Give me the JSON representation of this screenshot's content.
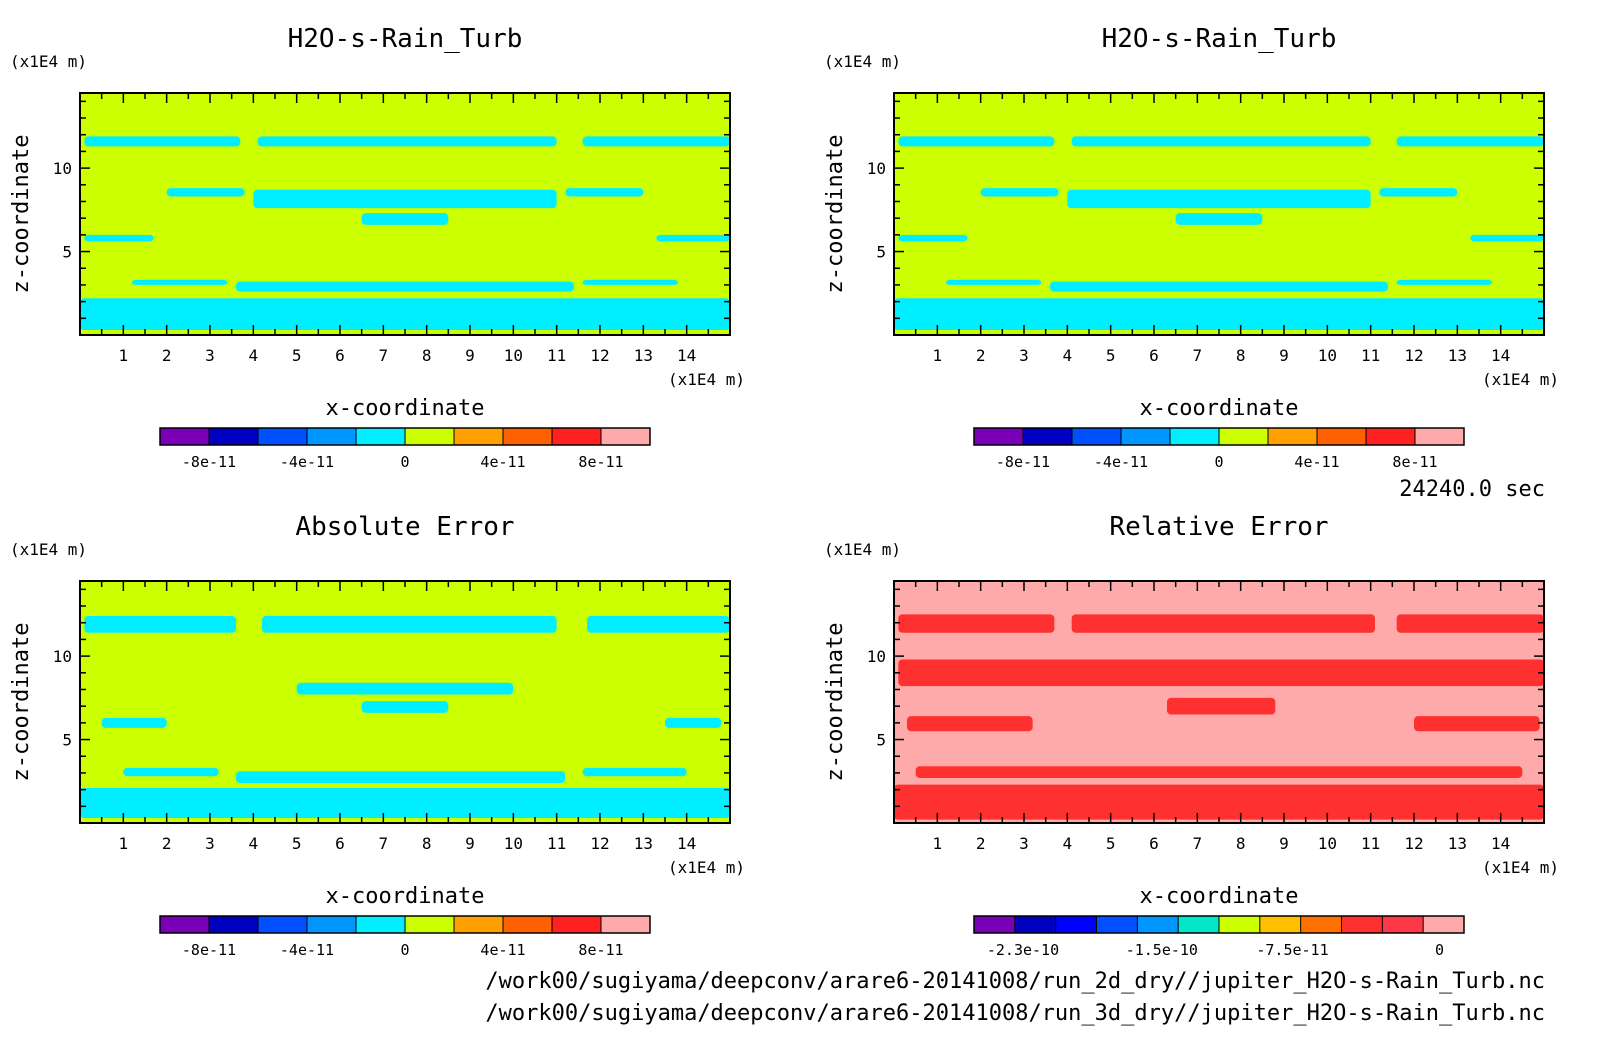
{
  "figure": {
    "time_label": "24240.0 sec",
    "file_paths": [
      "/work00/sugiyama/deepconv/arare6-20141008/run_2d_dry//jupiter_H2O-s-Rain_Turb.nc",
      "/work00/sugiyama/deepconv/arare6-20141008/run_3d_dry//jupiter_H2O-s-Rain_Turb.nc"
    ]
  },
  "chart_data": [
    {
      "type": "heatmap",
      "title": "H2O-s-Rain_Turb",
      "xlabel": "x-coordinate",
      "ylabel": "z-coordinate",
      "x_unit": "(x1E4 m)",
      "y_unit": "(x1E4 m)",
      "xlim": [
        0,
        15
      ],
      "ylim": [
        0,
        14.5
      ],
      "x_ticks": [
        "1",
        "2",
        "3",
        "4",
        "5",
        "6",
        "7",
        "8",
        "9",
        "10",
        "11",
        "12",
        "13",
        "14"
      ],
      "y_ticks": [
        "5",
        "10"
      ],
      "background_level": "0 to 2e-11",
      "background_color": "#ccff00",
      "feature_color": "#00eeff",
      "features": [
        {
          "x": [
            0.1,
            3.7
          ],
          "z": [
            11.3,
            11.9
          ]
        },
        {
          "x": [
            4.1,
            11.0
          ],
          "z": [
            11.3,
            11.9
          ]
        },
        {
          "x": [
            11.6,
            15.0
          ],
          "z": [
            11.3,
            11.9
          ]
        },
        {
          "x": [
            2.0,
            3.8
          ],
          "z": [
            8.3,
            8.8
          ]
        },
        {
          "x": [
            4.0,
            11.0
          ],
          "z": [
            7.6,
            8.7
          ]
        },
        {
          "x": [
            6.5,
            8.5
          ],
          "z": [
            6.6,
            7.3
          ]
        },
        {
          "x": [
            11.2,
            13.0
          ],
          "z": [
            8.3,
            8.8
          ]
        },
        {
          "x": [
            0.1,
            1.7
          ],
          "z": [
            5.6,
            6.0
          ]
        },
        {
          "x": [
            13.3,
            15.0
          ],
          "z": [
            5.6,
            6.0
          ]
        },
        {
          "x": [
            1.2,
            3.4
          ],
          "z": [
            3.0,
            3.3
          ]
        },
        {
          "x": [
            3.6,
            11.4
          ],
          "z": [
            2.6,
            3.2
          ]
        },
        {
          "x": [
            11.6,
            13.8
          ],
          "z": [
            3.0,
            3.3
          ]
        },
        {
          "x": [
            0.0,
            15.0
          ],
          "z": [
            0.3,
            2.2
          ]
        }
      ],
      "colorbar": {
        "labels": [
          "-8e-11",
          "-4e-11",
          "0",
          "4e-11",
          "8e-11"
        ],
        "colors": [
          "#7a00b8",
          "#0000c0",
          "#0050ff",
          "#0096ff",
          "#00eeff",
          "#ccff00",
          "#ffa000",
          "#ff6000",
          "#ff2020",
          "#ffaaaa"
        ]
      }
    },
    {
      "type": "heatmap",
      "title": "H2O-s-Rain_Turb",
      "xlabel": "x-coordinate",
      "ylabel": "z-coordinate",
      "x_unit": "(x1E4 m)",
      "y_unit": "(x1E4 m)",
      "xlim": [
        0,
        15
      ],
      "ylim": [
        0,
        14.5
      ],
      "x_ticks": [
        "1",
        "2",
        "3",
        "4",
        "5",
        "6",
        "7",
        "8",
        "9",
        "10",
        "11",
        "12",
        "13",
        "14"
      ],
      "y_ticks": [
        "5",
        "10"
      ],
      "background_level": "0 to 2e-11",
      "background_color": "#ccff00",
      "feature_color": "#00eeff",
      "features": [
        {
          "x": [
            0.1,
            3.7
          ],
          "z": [
            11.3,
            11.9
          ]
        },
        {
          "x": [
            4.1,
            11.0
          ],
          "z": [
            11.3,
            11.9
          ]
        },
        {
          "x": [
            11.6,
            15.0
          ],
          "z": [
            11.3,
            11.9
          ]
        },
        {
          "x": [
            2.0,
            3.8
          ],
          "z": [
            8.3,
            8.8
          ]
        },
        {
          "x": [
            4.0,
            11.0
          ],
          "z": [
            7.6,
            8.7
          ]
        },
        {
          "x": [
            6.5,
            8.5
          ],
          "z": [
            6.6,
            7.3
          ]
        },
        {
          "x": [
            11.2,
            13.0
          ],
          "z": [
            8.3,
            8.8
          ]
        },
        {
          "x": [
            0.1,
            1.7
          ],
          "z": [
            5.6,
            6.0
          ]
        },
        {
          "x": [
            13.3,
            15.0
          ],
          "z": [
            5.6,
            6.0
          ]
        },
        {
          "x": [
            1.2,
            3.4
          ],
          "z": [
            3.0,
            3.3
          ]
        },
        {
          "x": [
            3.6,
            11.4
          ],
          "z": [
            2.6,
            3.2
          ]
        },
        {
          "x": [
            11.6,
            13.8
          ],
          "z": [
            3.0,
            3.3
          ]
        },
        {
          "x": [
            0.0,
            15.0
          ],
          "z": [
            0.3,
            2.2
          ]
        }
      ],
      "colorbar": {
        "labels": [
          "-8e-11",
          "-4e-11",
          "0",
          "4e-11",
          "8e-11"
        ],
        "colors": [
          "#7a00b8",
          "#0000c0",
          "#0050ff",
          "#0096ff",
          "#00eeff",
          "#ccff00",
          "#ffa000",
          "#ff6000",
          "#ff2020",
          "#ffaaaa"
        ]
      }
    },
    {
      "type": "heatmap",
      "title": "Absolute Error",
      "xlabel": "x-coordinate",
      "ylabel": "z-coordinate",
      "x_unit": "(x1E4 m)",
      "y_unit": "(x1E4 m)",
      "xlim": [
        0,
        15
      ],
      "ylim": [
        0,
        14.5
      ],
      "x_ticks": [
        "1",
        "2",
        "3",
        "4",
        "5",
        "6",
        "7",
        "8",
        "9",
        "10",
        "11",
        "12",
        "13",
        "14"
      ],
      "y_ticks": [
        "5",
        "10"
      ],
      "background_level": "0 to 2e-11",
      "background_color": "#ccff00",
      "feature_color": "#00eeff",
      "features": [
        {
          "x": [
            0.1,
            3.6
          ],
          "z": [
            11.4,
            12.4
          ]
        },
        {
          "x": [
            4.2,
            11.0
          ],
          "z": [
            11.4,
            12.4
          ]
        },
        {
          "x": [
            11.7,
            15.0
          ],
          "z": [
            11.4,
            12.4
          ]
        },
        {
          "x": [
            5.0,
            10.0
          ],
          "z": [
            7.7,
            8.4
          ]
        },
        {
          "x": [
            6.5,
            8.5
          ],
          "z": [
            6.6,
            7.3
          ]
        },
        {
          "x": [
            0.5,
            2.0
          ],
          "z": [
            5.7,
            6.3
          ]
        },
        {
          "x": [
            13.5,
            14.8
          ],
          "z": [
            5.7,
            6.3
          ]
        },
        {
          "x": [
            1.0,
            3.2
          ],
          "z": [
            2.8,
            3.3
          ]
        },
        {
          "x": [
            3.6,
            11.2
          ],
          "z": [
            2.4,
            3.1
          ]
        },
        {
          "x": [
            11.6,
            14.0
          ],
          "z": [
            2.8,
            3.3
          ]
        },
        {
          "x": [
            0.0,
            15.0
          ],
          "z": [
            0.3,
            2.1
          ]
        }
      ],
      "colorbar": {
        "labels": [
          "-8e-11",
          "-4e-11",
          "0",
          "4e-11",
          "8e-11"
        ],
        "colors": [
          "#7a00b8",
          "#0000c0",
          "#0050ff",
          "#0096ff",
          "#00eeff",
          "#ccff00",
          "#ffa000",
          "#ff6000",
          "#ff2020",
          "#ffaaaa"
        ]
      }
    },
    {
      "type": "heatmap",
      "title": "Relative Error",
      "xlabel": "x-coordinate",
      "ylabel": "z-coordinate",
      "x_unit": "(x1E4 m)",
      "y_unit": "(x1E4 m)",
      "xlim": [
        0,
        15
      ],
      "ylim": [
        0,
        14.5
      ],
      "x_ticks": [
        "1",
        "2",
        "3",
        "4",
        "5",
        "6",
        "7",
        "8",
        "9",
        "10",
        "11",
        "12",
        "13",
        "14"
      ],
      "y_ticks": [
        "5",
        "10"
      ],
      "background_level": "> 0",
      "background_color": "#ffaaaa",
      "feature_color": "#ff3030",
      "features": [
        {
          "x": [
            0.1,
            3.7
          ],
          "z": [
            11.4,
            12.5
          ]
        },
        {
          "x": [
            4.1,
            11.1
          ],
          "z": [
            11.4,
            12.5
          ]
        },
        {
          "x": [
            11.6,
            15.0
          ],
          "z": [
            11.4,
            12.5
          ]
        },
        {
          "x": [
            0.1,
            15.0
          ],
          "z": [
            8.2,
            9.8
          ]
        },
        {
          "x": [
            6.3,
            8.8
          ],
          "z": [
            6.5,
            7.5
          ]
        },
        {
          "x": [
            0.3,
            3.2
          ],
          "z": [
            5.5,
            6.4
          ]
        },
        {
          "x": [
            12.0,
            14.9
          ],
          "z": [
            5.5,
            6.4
          ]
        },
        {
          "x": [
            0.5,
            14.5
          ],
          "z": [
            2.7,
            3.4
          ]
        },
        {
          "x": [
            0.0,
            15.0
          ],
          "z": [
            0.2,
            2.3
          ]
        }
      ],
      "colorbar": {
        "labels": [
          "-2.3e-10",
          "-1.5e-10",
          "-7.5e-11",
          "0"
        ],
        "colors": [
          "#7a00b8",
          "#0000c0",
          "#0000ff",
          "#0050ff",
          "#0096ff",
          "#00e8c8",
          "#ccff00",
          "#ffc000",
          "#ff7000",
          "#ff3030",
          "#ff3848",
          "#ffaaaa"
        ]
      }
    }
  ]
}
